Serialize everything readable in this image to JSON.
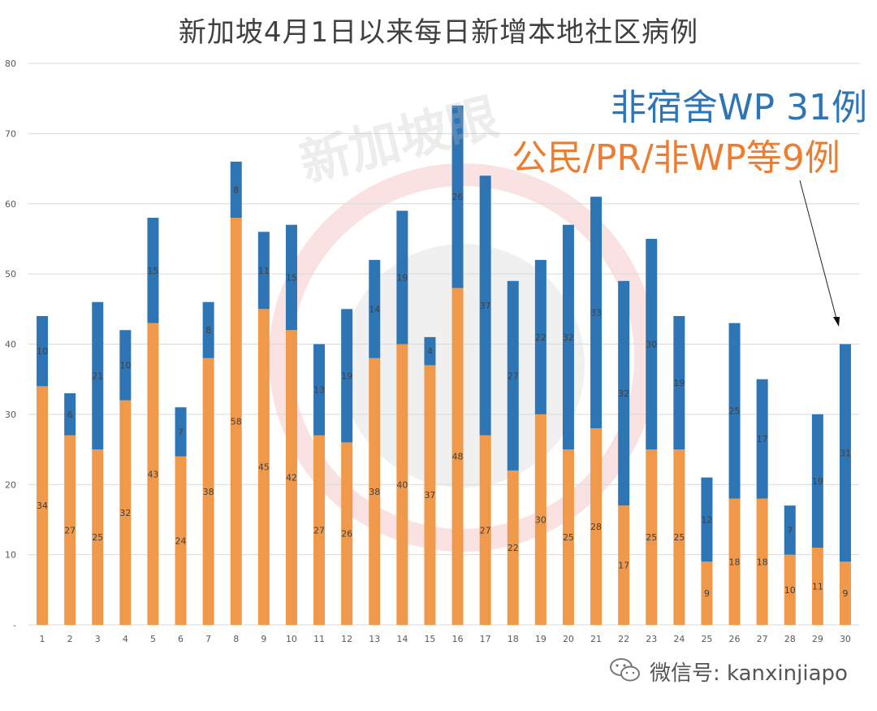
{
  "chart_data": {
    "type": "bar",
    "stacked": true,
    "title": "新加坡4月1日以来每日新增本地社区病例",
    "categories": [
      "1",
      "2",
      "3",
      "4",
      "5",
      "6",
      "7",
      "8",
      "9",
      "10",
      "11",
      "12",
      "13",
      "14",
      "15",
      "16",
      "17",
      "18",
      "19",
      "20",
      "21",
      "22",
      "23",
      "24",
      "25",
      "26",
      "27",
      "28",
      "29",
      "30"
    ],
    "series": [
      {
        "name": "",
        "color": "#f0994a",
        "values": [
          34,
          27,
          25,
          32,
          43,
          24,
          38,
          58,
          45,
          42,
          27,
          26,
          38,
          40,
          37,
          48,
          27,
          22,
          30,
          25,
          28,
          17,
          25,
          25,
          9,
          18,
          18,
          10,
          11,
          9
        ]
      },
      {
        "name": "",
        "color": "#2e75b6",
        "values": [
          10,
          6,
          21,
          10,
          15,
          7,
          8,
          8,
          11,
          15,
          13,
          19,
          14,
          19,
          4,
          26,
          37,
          27,
          22,
          32,
          33,
          32,
          30,
          19,
          12,
          25,
          17,
          7,
          19,
          31
        ]
      }
    ],
    "y_ticks": [
      "-",
      "10",
      "20",
      "30",
      "40",
      "50",
      "60",
      "70",
      "80"
    ],
    "ylim": [
      0,
      80
    ],
    "grid": true,
    "annotations": [
      {
        "text": "非宿舍WP 31例",
        "color": "#2e75b6"
      },
      {
        "text": "公民/PR/非WP等9例",
        "color": "#ed7d31"
      }
    ]
  },
  "watermark": {
    "text": "新加坡眼"
  },
  "footer": {
    "wechat_label": "微信号: kanxinjiapo"
  }
}
